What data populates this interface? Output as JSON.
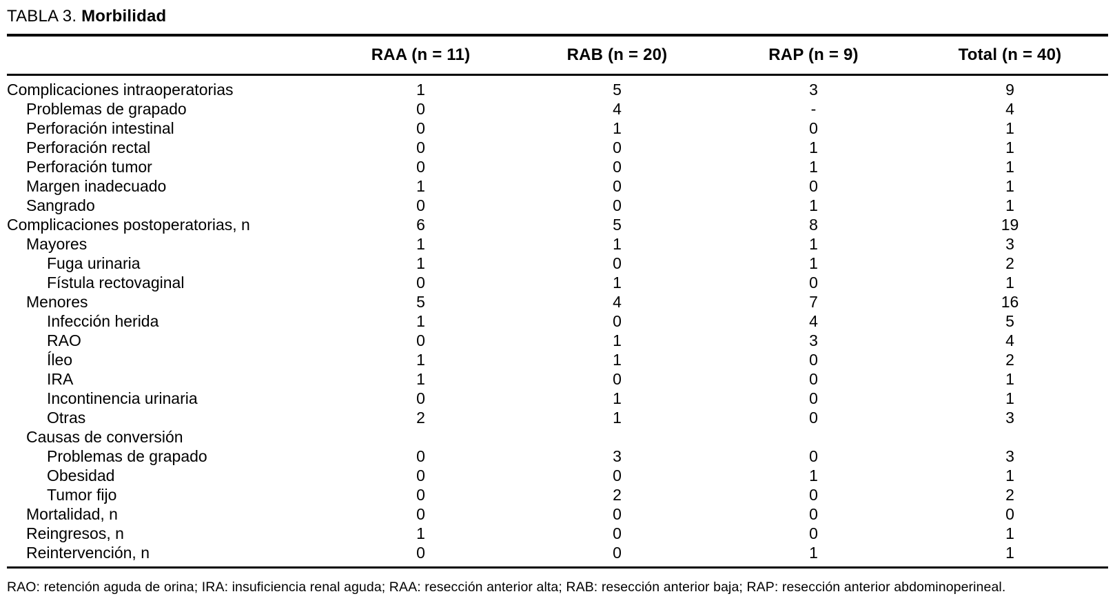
{
  "title": {
    "prefix": "TABLA 3. ",
    "name": "Morbilidad"
  },
  "table": {
    "columns": [
      "RAA (n = 11)",
      "RAB (n = 20)",
      "RAP (n = 9)",
      "Total (n = 40)"
    ],
    "rows": [
      {
        "label": "Complicaciones intraoperatorias",
        "indent": 0,
        "values": [
          "1",
          "5",
          "3",
          "9"
        ]
      },
      {
        "label": "Problemas de grapado",
        "indent": 1,
        "values": [
          "0",
          "4",
          "-",
          "4"
        ]
      },
      {
        "label": "Perforación intestinal",
        "indent": 1,
        "values": [
          "0",
          "1",
          "0",
          "1"
        ]
      },
      {
        "label": "Perforación rectal",
        "indent": 1,
        "values": [
          "0",
          "0",
          "1",
          "1"
        ]
      },
      {
        "label": "Perforación tumor",
        "indent": 1,
        "values": [
          "0",
          "0",
          "1",
          "1"
        ]
      },
      {
        "label": "Margen inadecuado",
        "indent": 1,
        "values": [
          "1",
          "0",
          "0",
          "1"
        ]
      },
      {
        "label": "Sangrado",
        "indent": 1,
        "values": [
          "0",
          "0",
          "1",
          "1"
        ]
      },
      {
        "label": "Complicaciones postoperatorias, n",
        "indent": 0,
        "values": [
          "6",
          "5",
          "8",
          "19"
        ]
      },
      {
        "label": "Mayores",
        "indent": 1,
        "values": [
          "1",
          "1",
          "1",
          "3"
        ]
      },
      {
        "label": "Fuga urinaria",
        "indent": 2,
        "values": [
          "1",
          "0",
          "1",
          "2"
        ]
      },
      {
        "label": "Fístula rectovaginal",
        "indent": 2,
        "values": [
          "0",
          "1",
          "0",
          "1"
        ]
      },
      {
        "label": "Menores",
        "indent": 1,
        "values": [
          "5",
          "4",
          "7",
          "16"
        ]
      },
      {
        "label": "Infección herida",
        "indent": 2,
        "values": [
          "1",
          "0",
          "4",
          "5"
        ]
      },
      {
        "label": "RAO",
        "indent": 2,
        "values": [
          "0",
          "1",
          "3",
          "4"
        ]
      },
      {
        "label": "Íleo",
        "indent": 2,
        "values": [
          "1",
          "1",
          "0",
          "2"
        ]
      },
      {
        "label": "IRA",
        "indent": 2,
        "values": [
          "1",
          "0",
          "0",
          "1"
        ]
      },
      {
        "label": "Incontinencia urinaria",
        "indent": 2,
        "values": [
          "0",
          "1",
          "0",
          "1"
        ]
      },
      {
        "label": "Otras",
        "indent": 2,
        "values": [
          "2",
          "1",
          "0",
          "3"
        ]
      },
      {
        "label": "Causas de conversión",
        "indent": 1,
        "values": [
          "",
          "",
          "",
          ""
        ]
      },
      {
        "label": "Problemas de grapado",
        "indent": 2,
        "values": [
          "0",
          "3",
          "0",
          "3"
        ]
      },
      {
        "label": "Obesidad",
        "indent": 2,
        "values": [
          "0",
          "0",
          "1",
          "1"
        ]
      },
      {
        "label": "Tumor fijo",
        "indent": 2,
        "values": [
          "0",
          "2",
          "0",
          "2"
        ]
      },
      {
        "label": "Mortalidad, n",
        "indent": 1,
        "values": [
          "0",
          "0",
          "0",
          "0"
        ]
      },
      {
        "label": "Reingresos, n",
        "indent": 1,
        "values": [
          "1",
          "0",
          "0",
          "1"
        ]
      },
      {
        "label": "Reintervención, n",
        "indent": 1,
        "values": [
          "0",
          "0",
          "1",
          "1"
        ]
      }
    ]
  },
  "footnote": "RAO: retención aguda de orina; IRA: insuficiencia renal aguda; RAA: resección anterior alta; RAB: resección anterior baja; RAP: resección anterior abdominoperineal.",
  "colors": {
    "text": "#000000",
    "background": "#ffffff",
    "rule": "#000000"
  }
}
